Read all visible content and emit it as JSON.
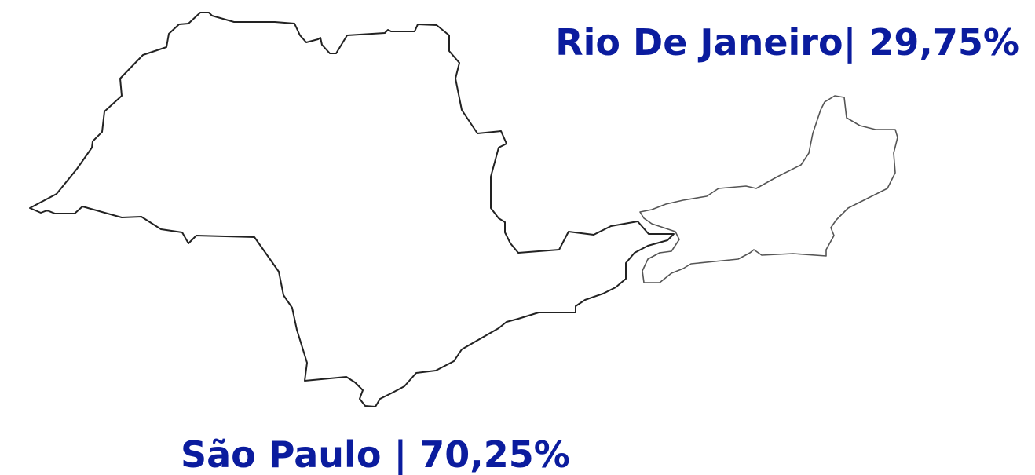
{
  "regions": [
    {
      "label": "Rio De Janeiro| 29,75%"
    },
    {
      "label": "São Paulo | 70,25%"
    }
  ]
}
